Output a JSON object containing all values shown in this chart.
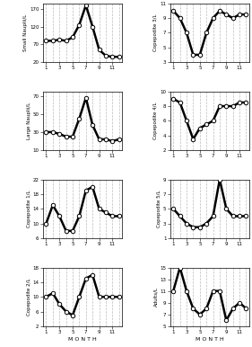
{
  "panels": [
    {
      "ylabel": "Small Nauplii/L",
      "ylim": [
        20,
        185
      ],
      "yticks": [
        20,
        70,
        120,
        170
      ],
      "values": [
        80,
        80,
        83,
        80,
        90,
        125,
        180,
        120,
        55,
        38,
        35,
        35
      ]
    },
    {
      "ylabel": "Large Nauplii/L",
      "ylim": [
        10,
        75
      ],
      "yticks": [
        10,
        30,
        50,
        70
      ],
      "values": [
        30,
        30,
        28,
        25,
        25,
        45,
        68,
        38,
        22,
        22,
        20,
        22
      ]
    },
    {
      "ylabel": "Copepodite 1/L",
      "ylim": [
        6,
        22
      ],
      "yticks": [
        6,
        10,
        14,
        18,
        22
      ],
      "values": [
        10,
        15,
        12,
        8,
        8,
        12,
        19,
        20,
        14,
        13,
        12,
        12
      ]
    },
    {
      "ylabel": "Copepodite 2/L",
      "ylim": [
        2,
        18
      ],
      "yticks": [
        2,
        6,
        10,
        14,
        18
      ],
      "values": [
        10,
        11,
        8,
        6,
        5,
        10,
        15,
        16,
        10,
        10,
        10,
        10
      ]
    },
    {
      "ylabel": "Copepodite 3/L",
      "ylim": [
        3,
        11
      ],
      "yticks": [
        3,
        5,
        7,
        9,
        11
      ],
      "values": [
        10,
        9,
        7,
        4,
        4,
        7,
        9,
        10,
        9.5,
        9,
        9.5,
        9.5
      ]
    },
    {
      "ylabel": "Copepodite 4/L",
      "ylim": [
        2,
        10
      ],
      "yticks": [
        2,
        4,
        6,
        8,
        10
      ],
      "values": [
        9,
        8.5,
        6,
        3.5,
        5,
        5.5,
        6,
        8,
        8,
        8,
        8.5,
        8.5
      ]
    },
    {
      "ylabel": "Copepodite 5/L",
      "ylim": [
        1,
        9
      ],
      "yticks": [
        1,
        3,
        5,
        7,
        9
      ],
      "values": [
        5,
        4,
        3,
        2.5,
        2.5,
        3,
        4,
        9,
        5,
        4,
        4,
        4
      ]
    },
    {
      "ylabel": "Adults/L",
      "ylim": [
        5,
        15
      ],
      "yticks": [
        5,
        7,
        9,
        11,
        13,
        15
      ],
      "values": [
        11,
        15,
        11,
        8,
        7,
        8,
        11,
        11,
        6,
        8,
        9,
        8
      ]
    }
  ],
  "months": [
    1,
    2,
    3,
    4,
    5,
    6,
    7,
    8,
    9,
    10,
    11,
    12
  ],
  "xticks": [
    1,
    3,
    5,
    7,
    9,
    11
  ],
  "xlabel": "M O N T H",
  "line_color": "black",
  "marker_facecolor": "white",
  "marker_edgecolor": "black",
  "bg_color": "white",
  "grid_color": "#bbbbbb",
  "linewidth": 1.8,
  "markersize": 3.2,
  "grid_linewidth": 0.5
}
